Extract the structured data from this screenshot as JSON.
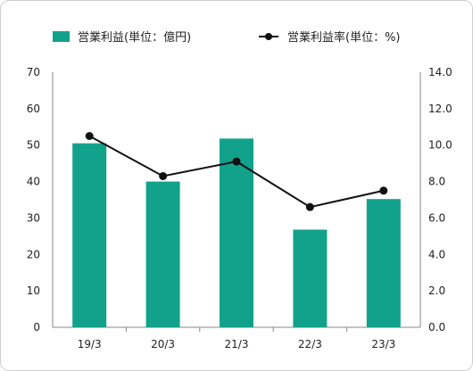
{
  "chart_data": {
    "type": "bar",
    "categories": [
      "19/3",
      "20/3",
      "21/3",
      "22/3",
      "23/3"
    ],
    "series": [
      {
        "name": "営業利益(単位：億円)",
        "type": "bar",
        "axis": "left",
        "values": [
          50.5,
          40.0,
          51.8,
          26.8,
          35.2
        ]
      },
      {
        "name": "営業利益率(単位：%)",
        "type": "line",
        "axis": "right",
        "values": [
          10.5,
          8.3,
          9.1,
          6.6,
          7.5
        ]
      }
    ],
    "y_left": {
      "ylim": [
        0,
        70
      ],
      "ticks": [
        "0",
        "10",
        "20",
        "30",
        "40",
        "50",
        "60",
        "70"
      ]
    },
    "y_right": {
      "ylim": [
        0,
        14
      ],
      "ticks": [
        "0.0",
        "2.0",
        "4.0",
        "6.0",
        "8.0",
        "10.0",
        "12.0",
        "14.0"
      ]
    },
    "title": "",
    "xlabel": "",
    "ylabel": "",
    "legend": "top",
    "grid": false,
    "colors": {
      "bar": "#12a28c",
      "line": "#111111",
      "axis": "#888888"
    }
  }
}
